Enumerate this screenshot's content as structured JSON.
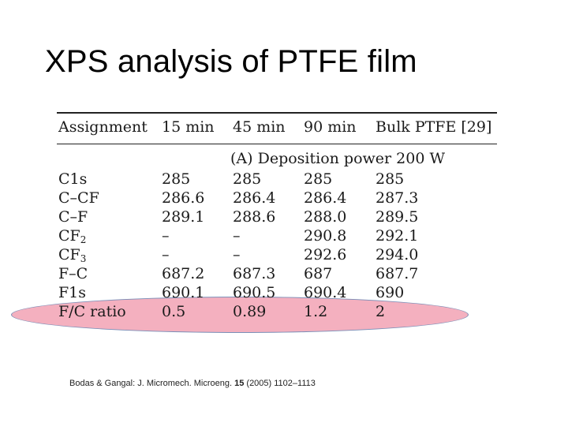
{
  "slide": {
    "title": "XPS analysis of PTFE film"
  },
  "table": {
    "headers": [
      "Assignment",
      "15 min",
      "45 min",
      "90 min",
      "Bulk PTFE [29]"
    ],
    "section_label": "(A) Deposition power 200 W",
    "rows": [
      {
        "assignment": "C1s",
        "sub": "",
        "m15": "285",
        "m45": "285",
        "m90": "285",
        "bulk": "285"
      },
      {
        "assignment": "C–CF",
        "sub": "",
        "m15": "286.6",
        "m45": "286.4",
        "m90": "286.4",
        "bulk": "287.3"
      },
      {
        "assignment": "C–F",
        "sub": "",
        "m15": "289.1",
        "m45": "288.6",
        "m90": "288.0",
        "bulk": "289.5"
      },
      {
        "assignment": "CF",
        "sub": "2",
        "m15": "–",
        "m45": "–",
        "m90": "290.8",
        "bulk": "292.1"
      },
      {
        "assignment": "CF",
        "sub": "3",
        "m15": "–",
        "m45": "–",
        "m90": "292.6",
        "bulk": "294.0"
      },
      {
        "assignment": "F–C",
        "sub": "",
        "m15": "687.2",
        "m45": "687.3",
        "m90": "687",
        "bulk": "687.7"
      },
      {
        "assignment": "F1s",
        "sub": "",
        "m15": "690.1",
        "m45": "690.5",
        "m90": "690.4",
        "bulk": "690"
      },
      {
        "assignment": "F/C ratio",
        "sub": "",
        "m15": "0.5",
        "m45": "0.89",
        "m90": "1.2",
        "bulk": "2"
      }
    ]
  },
  "highlight": {
    "color": "#f096aa",
    "row": "F/C ratio"
  },
  "citation": {
    "authors": "Bodas & Gangal: J. Micromech. Microeng. ",
    "volume": "15",
    "rest": " (2005) 1102–1113"
  }
}
